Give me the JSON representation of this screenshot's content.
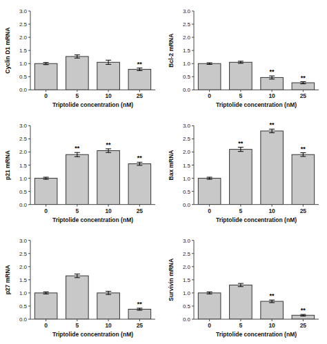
{
  "chart_data": [
    {
      "type": "bar",
      "y_label": "Cyclin D1 mRNA",
      "x_label": "Triptolide concentration (nM)",
      "categories": [
        "0",
        "5",
        "10",
        "25"
      ],
      "values": [
        1.0,
        1.27,
        1.05,
        0.78
      ],
      "errors": [
        0.04,
        0.06,
        0.08,
        0.05
      ],
      "annotations": [
        {
          "text": "**",
          "category": "25"
        }
      ],
      "color": "#c8c8c8",
      "ylim": [
        0.0,
        3.0
      ],
      "yticks": [
        {
          "value": 0.0,
          "label": "0.0"
        },
        0.5,
        {
          "value": 1.0,
          "label": "1.0"
        },
        1.5,
        {
          "value": 2.0,
          "label": "2.0"
        },
        2.5,
        {
          "value": 3.0,
          "label": "3.0"
        }
      ],
      "grid": false
    },
    {
      "type": "bar",
      "y_label": "Bcl-2 mRNA",
      "x_label": "Triptolide concentration (nM)",
      "categories": [
        "0",
        "5",
        "10",
        "25"
      ],
      "values": [
        1.0,
        1.05,
        0.47,
        0.27
      ],
      "errors": [
        0.03,
        0.04,
        0.06,
        0.04
      ],
      "annotations": [
        {
          "text": "**",
          "category": "10"
        },
        {
          "text": "**",
          "category": "25"
        }
      ],
      "color": "#c8c8c8",
      "ylim": [
        0.0,
        3.0
      ],
      "yticks": [
        {
          "value": 0.0,
          "label": "0.0"
        },
        0.5,
        {
          "value": 1.0,
          "label": "1.0"
        },
        1.5,
        {
          "value": 2.0,
          "label": "2.0"
        },
        2.5,
        {
          "value": 3.0,
          "label": "3.0"
        }
      ],
      "grid": false
    },
    {
      "type": "bar",
      "y_label": "p21 mRNA",
      "x_label": "Triptolide concentration (nM)",
      "categories": [
        "0",
        "5",
        "10",
        "25"
      ],
      "values": [
        1.0,
        1.9,
        2.05,
        1.55
      ],
      "errors": [
        0.04,
        0.08,
        0.07,
        0.06
      ],
      "annotations": [
        {
          "text": "**",
          "category": "5"
        },
        {
          "text": "**",
          "category": "10"
        },
        {
          "text": "**",
          "category": "25"
        }
      ],
      "color": "#c8c8c8",
      "ylim": [
        0.0,
        3.0
      ],
      "yticks": [
        {
          "value": 0.0,
          "label": "0.0"
        },
        0.5,
        {
          "value": 1.0,
          "label": "1.0"
        },
        1.5,
        {
          "value": 2.0,
          "label": "2.0"
        },
        2.5,
        {
          "value": 3.0,
          "label": "3.0"
        }
      ],
      "grid": false
    },
    {
      "type": "bar",
      "y_label": "Bax mRNA",
      "x_label": "Triptolide concentration (nM)",
      "categories": [
        "0",
        "5",
        "10",
        "25"
      ],
      "values": [
        1.0,
        2.1,
        2.8,
        1.9
      ],
      "errors": [
        0.04,
        0.08,
        0.07,
        0.07
      ],
      "annotations": [
        {
          "text": "**",
          "category": "5"
        },
        {
          "text": "**",
          "category": "10"
        },
        {
          "text": "**",
          "category": "25"
        }
      ],
      "color": "#c8c8c8",
      "ylim": [
        0.0,
        3.0
      ],
      "yticks": [
        {
          "value": 0.0,
          "label": "0.0"
        },
        0.5,
        {
          "value": 1.0,
          "label": "1.0"
        },
        1.5,
        {
          "value": 2.0,
          "label": "2.0"
        },
        2.5,
        {
          "value": 3.0,
          "label": "3.0"
        }
      ],
      "grid": false
    },
    {
      "type": "bar",
      "y_label": "p27 mRNA",
      "x_label": "Triptolide concentration (nM)",
      "categories": [
        "0",
        "5",
        "10",
        "25"
      ],
      "values": [
        1.0,
        1.65,
        1.0,
        0.38
      ],
      "errors": [
        0.04,
        0.07,
        0.06,
        0.04
      ],
      "annotations": [
        {
          "text": "**",
          "category": "25"
        }
      ],
      "color": "#c8c8c8",
      "ylim": [
        0.0,
        3.0
      ],
      "yticks": [
        {
          "value": 0.0,
          "label": "0.0"
        },
        0.5,
        {
          "value": 1.0,
          "label": "1.0"
        },
        1.5,
        {
          "value": 2.0,
          "label": "2.0"
        },
        2.5,
        {
          "value": 3.0,
          "label": "3.0"
        }
      ],
      "grid": false
    },
    {
      "type": "bar",
      "y_label": "Survivin mRNA",
      "x_label": "Triptolide concentration (nM)",
      "categories": [
        "0",
        "5",
        "10",
        "25"
      ],
      "values": [
        1.0,
        1.3,
        0.68,
        0.15
      ],
      "errors": [
        0.04,
        0.06,
        0.05,
        0.03
      ],
      "annotations": [
        {
          "text": "**",
          "category": "10"
        },
        {
          "text": "**",
          "category": "25"
        }
      ],
      "color": "#c8c8c8",
      "ylim": [
        0.0,
        3.0
      ],
      "yticks": [
        {
          "value": 0.0,
          "label": "0.0"
        },
        0.5,
        {
          "value": 1.0,
          "label": "1.0"
        },
        1.5,
        {
          "value": 2.0,
          "label": "2.0"
        },
        2.5,
        {
          "value": 3.0,
          "label": "3.0"
        }
      ],
      "grid": false
    }
  ]
}
